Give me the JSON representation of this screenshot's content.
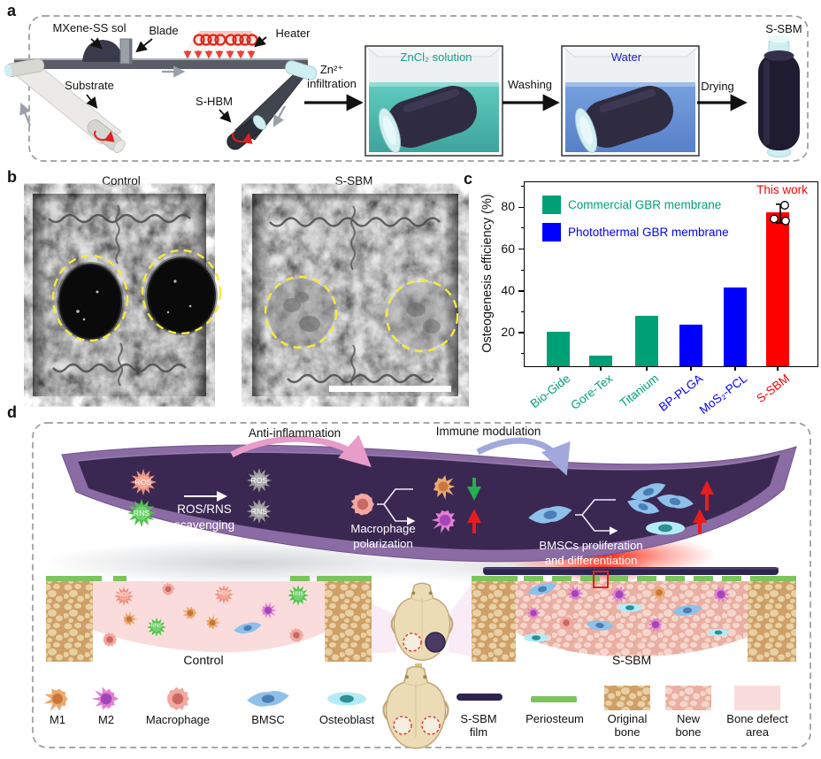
{
  "palette": {
    "green_bar": "#00A077",
    "blue_bar": "#0000FE",
    "red_bar": "#FE0000",
    "teal_text": "#1B9E8F",
    "water_blue_text": "#2323CC",
    "yellow_dash": "#F4EA3D",
    "membrane_dark": "#3A2852",
    "membrane_light": "#8A6BA3",
    "m1": "#EAA96E",
    "m1_nucleus": "#C9763B",
    "m2": "#E27FD4",
    "m2_nucleus": "#A546B8",
    "macrophage": "#F2A7A0",
    "macrophage_nucleus": "#C96A62",
    "bmsc": "#8FC0EA",
    "bmsc_nucleus": "#4A7FB5",
    "osteoblast": "#B3ECF5",
    "osteoblast_nucleus": "#2E8F96",
    "ros": "#F0907E",
    "rns": "#4EC44A",
    "ros_gray": "#9A9A9A",
    "periosteum": "#7CC45C",
    "film": "#2E2450",
    "original_bone_bg": "#E8D0A4",
    "original_bone_blob": "#CE9F66",
    "new_bone_bg": "#E9AFA2",
    "new_bone_blob": "#F6D6CC",
    "defect_bg": "#FBDCDC"
  },
  "panel_a": {
    "label": "a",
    "mxene": "MXene-SS sol",
    "blade": "Blade",
    "heater": "Heater",
    "substrate": "Substrate",
    "shbm": "S-HBM",
    "zn": "Zn²⁺",
    "infiltration": "infiltration",
    "zncl2": "ZnCl₂ solution",
    "washing": "Washing",
    "water": "Water",
    "drying": "Drying",
    "ssbm": "S-SBM"
  },
  "panel_b": {
    "label": "b",
    "left_title": "Control",
    "right_title": "S-SBM"
  },
  "panel_c": {
    "label": "c"
  },
  "chart_data": {
    "type": "bar",
    "title": "",
    "xlabel": "",
    "ylabel": "Osteogenesis efficiency (%)",
    "categories": [
      "Bio-Gide",
      "Gore-Tex",
      "Titanium",
      "BP-PLGA",
      "MoS₂-PCL",
      "S-SBM"
    ],
    "values": [
      20.5,
      9,
      28,
      24,
      41.5,
      77.5
    ],
    "bar_colors": [
      "#00A077",
      "#00A077",
      "#00A077",
      "#0000FE",
      "#0000FE",
      "#FE0000"
    ],
    "yticks": [
      20,
      40,
      60,
      80
    ],
    "yticks_minor": [
      10,
      30,
      50,
      70,
      90
    ],
    "ylim": [
      4,
      92
    ],
    "grid": false,
    "legend_position": "upper left",
    "legend": [
      {
        "label": "Commercial GBR membrane",
        "color": "#00A077"
      },
      {
        "label": "Photothermal GBR membrane",
        "color": "#0000FE"
      }
    ],
    "annotation": "This work",
    "error_bar": {
      "category": "S-SBM",
      "value": 77.5,
      "low": 72.5,
      "high": 81.5
    },
    "scatter_points": [
      {
        "value": 74.5,
        "x_offset": -7
      },
      {
        "value": 81,
        "x_offset": 5
      },
      {
        "value": 73.5,
        "x_offset": 6
      }
    ]
  },
  "panel_d": {
    "label": "d",
    "anti_inflammation": "Anti-inflammation",
    "immune_modulation": "Immune modulation",
    "ros": "ROS",
    "rns": "RNS",
    "scavenging_l1": "ROS/RNS",
    "scavenging_l2": "scavenging",
    "macrophage_l1": "Macrophage",
    "macrophage_l2": "polarization",
    "bmsc_l1": "BMSCs proliferation",
    "bmsc_l2": "and differentiation",
    "control": "Control",
    "ssbm": "S-SBM",
    "legend_cells": [
      {
        "label": "M1"
      },
      {
        "label": "M2"
      },
      {
        "label": "Macrophage"
      },
      {
        "label": "BMSC"
      },
      {
        "label": "Osteoblast"
      }
    ],
    "legend_items": [
      {
        "label": "S-SBM film"
      },
      {
        "label": "Periosteum"
      },
      {
        "label": "Original bone"
      },
      {
        "label": "New bone"
      },
      {
        "label": "Bone defect area"
      }
    ]
  }
}
